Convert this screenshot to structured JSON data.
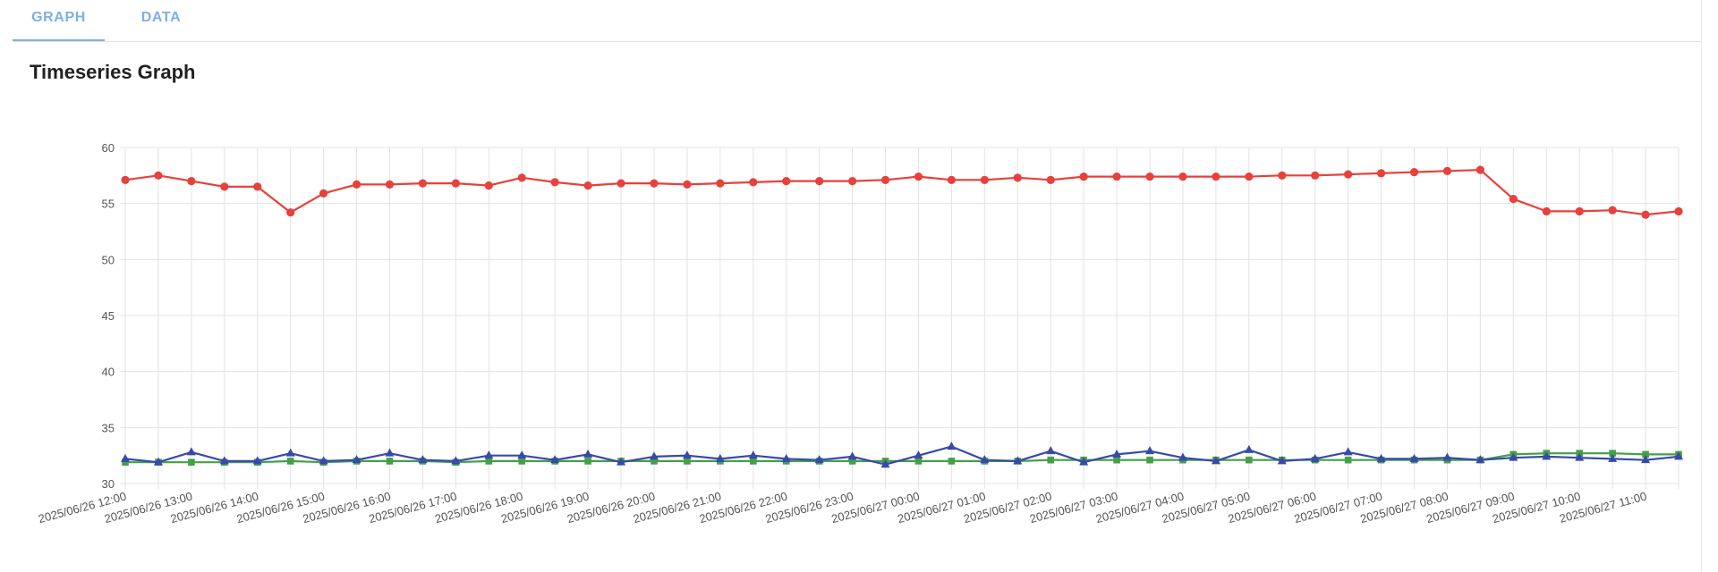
{
  "tabs": [
    {
      "label": "GRAPH",
      "active": true
    },
    {
      "label": "DATA",
      "active": false
    }
  ],
  "page": {
    "title": "Timeseries Graph"
  },
  "colors": {
    "tab_accent": "#7eaee9",
    "grid": "#e3e3e3"
  },
  "chart_data": {
    "type": "line",
    "title": "",
    "xlabel": "",
    "ylabel": "",
    "ylim": [
      30,
      60
    ],
    "yticks": [
      30,
      35,
      40,
      45,
      50,
      55,
      60
    ],
    "grid": true,
    "x_labels": [
      "2025/06/26 12:00",
      "2025/06/26 13:00",
      "2025/06/26 14:00",
      "2025/06/26 15:00",
      "2025/06/26 16:00",
      "2025/06/26 17:00",
      "2025/06/26 18:00",
      "2025/06/26 19:00",
      "2025/06/26 20:00",
      "2025/06/26 21:00",
      "2025/06/26 22:00",
      "2025/06/26 23:00",
      "2025/06/27 00:00",
      "2025/06/27 01:00",
      "2025/06/27 02:00",
      "2025/06/27 03:00",
      "2025/06/27 04:00",
      "2025/06/27 05:00",
      "2025/06/27 06:00",
      "2025/06/27 07:00",
      "2025/06/27 08:00",
      "2025/06/27 09:00",
      "2025/06/27 10:00",
      "2025/06/27 11:00"
    ],
    "x_interval_minutes": 30,
    "series": [
      {
        "color": "#e8403a",
        "marker": "circle",
        "values": [
          57.1,
          57.5,
          57.0,
          56.5,
          56.5,
          54.2,
          55.9,
          56.7,
          56.7,
          56.8,
          56.8,
          56.6,
          57.3,
          56.9,
          56.6,
          56.8,
          56.8,
          56.7,
          56.8,
          56.9,
          57.0,
          57.0,
          57.0,
          57.1,
          57.4,
          57.1,
          57.1,
          57.3,
          57.1,
          57.4,
          57.4,
          57.4,
          57.4,
          57.4,
          57.4,
          57.5,
          57.5,
          57.6,
          57.7,
          57.8,
          57.9,
          58.0,
          55.4,
          54.3,
          54.3,
          54.4,
          54.0,
          54.3
        ]
      },
      {
        "color": "#43a047",
        "marker": "square",
        "values": [
          31.9,
          31.9,
          31.9,
          31.9,
          31.9,
          32.0,
          31.9,
          32.0,
          32.0,
          32.0,
          31.9,
          32.0,
          32.0,
          32.0,
          32.0,
          32.0,
          32.0,
          32.0,
          32.0,
          32.0,
          32.0,
          32.0,
          32.0,
          32.0,
          32.0,
          32.0,
          32.0,
          32.0,
          32.1,
          32.1,
          32.1,
          32.1,
          32.1,
          32.1,
          32.1,
          32.1,
          32.1,
          32.1,
          32.1,
          32.1,
          32.1,
          32.1,
          32.6,
          32.7,
          32.7,
          32.7,
          32.6,
          32.6
        ]
      },
      {
        "color": "#3949ab",
        "marker": "triangle",
        "values": [
          32.2,
          31.9,
          32.8,
          32.0,
          32.0,
          32.7,
          32.0,
          32.1,
          32.7,
          32.1,
          32.0,
          32.5,
          32.5,
          32.1,
          32.6,
          31.9,
          32.4,
          32.5,
          32.2,
          32.5,
          32.2,
          32.1,
          32.4,
          31.7,
          32.5,
          33.3,
          32.1,
          32.0,
          32.9,
          31.9,
          32.6,
          32.9,
          32.3,
          32.0,
          33.0,
          32.0,
          32.2,
          32.8,
          32.2,
          32.2,
          32.3,
          32.1,
          32.3,
          32.4,
          32.3,
          32.2,
          32.1,
          32.4
        ]
      }
    ]
  }
}
